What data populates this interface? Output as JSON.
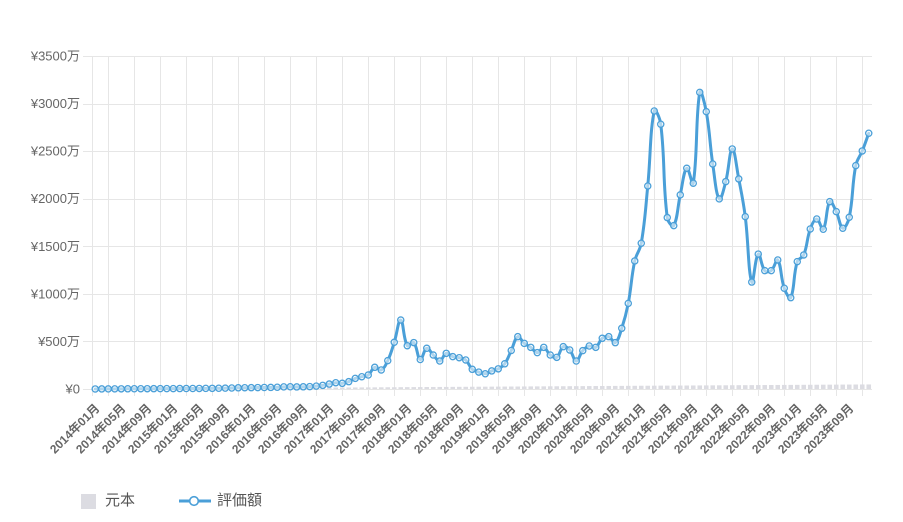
{
  "chart_data": {
    "type": "line",
    "title": "",
    "xlabel": "",
    "ylabel": "",
    "y_unit": "万円",
    "ylim": [
      0,
      3500
    ],
    "y_ticks": [
      0,
      500,
      1000,
      1500,
      2000,
      2500,
      3000,
      3500
    ],
    "y_tick_labels": [
      "¥0",
      "¥500万",
      "¥1000万",
      "¥1500万",
      "¥2000万",
      "¥2500万",
      "¥3000万",
      "¥3500万"
    ],
    "grid": true,
    "legend_position": "bottom-left",
    "x_tick_labels": [
      "2014年01月",
      "2014年05月",
      "2014年09月",
      "2015年01月",
      "2015年05月",
      "2015年09月",
      "2016年01月",
      "2016年05月",
      "2016年09月",
      "2017年01月",
      "2017年05月",
      "2017年09月",
      "2018年01月",
      "2018年05月",
      "2018年09月",
      "2019年01月",
      "2019年05月",
      "2019年09月",
      "2020年01月",
      "2020年05月",
      "2020年09月",
      "2021年01月",
      "2021年05月",
      "2021年09月",
      "2022年01月",
      "2022年05月",
      "2022年09月",
      "2023年01月",
      "2023年05月",
      "2023年09月"
    ],
    "categories": [
      "2014年01月",
      "2014年02月",
      "2014年03月",
      "2014年04月",
      "2014年05月",
      "2014年06月",
      "2014年07月",
      "2014年08月",
      "2014年09月",
      "2014年10月",
      "2014年11月",
      "2014年12月",
      "2015年01月",
      "2015年02月",
      "2015年03月",
      "2015年04月",
      "2015年05月",
      "2015年06月",
      "2015年07月",
      "2015年08月",
      "2015年09月",
      "2015年10月",
      "2015年11月",
      "2015年12月",
      "2016年01月",
      "2016年02月",
      "2016年03月",
      "2016年04月",
      "2016年05月",
      "2016年06月",
      "2016年07月",
      "2016年08月",
      "2016年09月",
      "2016年10月",
      "2016年11月",
      "2016年12月",
      "2017年01月",
      "2017年02月",
      "2017年03月",
      "2017年04月",
      "2017年05月",
      "2017年06月",
      "2017年07月",
      "2017年08月",
      "2017年09月",
      "2017年10月",
      "2017年11月",
      "2017年12月",
      "2018年01月",
      "2018年02月",
      "2018年03月",
      "2018年04月",
      "2018年05月",
      "2018年06月",
      "2018年07月",
      "2018年08月",
      "2018年09月",
      "2018年10月",
      "2018年11月",
      "2018年12月",
      "2019年01月",
      "2019年02月",
      "2019年03月",
      "2019年04月",
      "2019年05月",
      "2019年06月",
      "2019年07月",
      "2019年08月",
      "2019年09月",
      "2019年10月",
      "2019年11月",
      "2019年12月",
      "2020年01月",
      "2020年02月",
      "2020年03月",
      "2020年04月",
      "2020年05月",
      "2020年06月",
      "2020年07月",
      "2020年08月",
      "2020年09月",
      "2020年10月",
      "2020年11月",
      "2020年12月",
      "2021年01月",
      "2021年02月",
      "2021年03月",
      "2021年04月",
      "2021年05月",
      "2021年06月",
      "2021年07月",
      "2021年08月",
      "2021年09月",
      "2021年10月",
      "2021年11月",
      "2021年12月",
      "2022年01月",
      "2022年02月",
      "2022年03月",
      "2022年04月",
      "2022年05月",
      "2022年06月",
      "2022年07月",
      "2022年08月",
      "2022年09月",
      "2022年10月",
      "2022年11月",
      "2022年12月",
      "2023年01月",
      "2023年02月",
      "2023年03月",
      "2023年04月",
      "2023年05月",
      "2023年06月",
      "2023年07月",
      "2023年08月",
      "2023年09月",
      "2023年10月",
      "2023年11月",
      "2023年12月"
    ],
    "series": [
      {
        "name": "元本",
        "type": "bar",
        "color": "#dcdce2",
        "values": [
          0.4,
          0.8,
          1.2,
          1.6,
          2.0,
          2.4,
          2.8,
          3.2,
          3.6,
          4.0,
          4.4,
          4.8,
          5.2,
          5.6,
          6.0,
          6.4,
          6.8,
          7.2,
          7.6,
          8.0,
          8.4,
          8.8,
          9.2,
          9.6,
          10.0,
          10.4,
          10.8,
          11.2,
          11.6,
          12.0,
          12.4,
          12.8,
          13.2,
          13.6,
          14.0,
          14.4,
          14.8,
          15.2,
          15.6,
          16.0,
          16.4,
          16.8,
          17.2,
          17.6,
          18.0,
          18.4,
          18.8,
          19.2,
          19.6,
          20.0,
          20.4,
          20.8,
          21.2,
          21.6,
          22.0,
          22.4,
          22.8,
          23.2,
          23.6,
          24.0,
          24.4,
          24.8,
          25.2,
          25.6,
          26.0,
          26.4,
          26.8,
          27.2,
          27.6,
          28.0,
          28.4,
          28.8,
          29.2,
          29.6,
          30.0,
          30.4,
          30.8,
          31.2,
          31.6,
          32.0,
          32.4,
          32.8,
          33.2,
          33.6,
          34.0,
          34.4,
          34.8,
          35.2,
          35.6,
          36.0,
          36.4,
          36.8,
          37.2,
          37.6,
          38.0,
          38.4,
          38.8,
          39.2,
          39.6,
          40.0,
          40.4,
          40.8,
          41.2,
          41.6,
          42.0,
          42.4,
          42.8,
          43.2,
          43.6,
          44.0,
          44.4,
          44.8,
          45.2,
          45.6,
          46.0,
          46.4,
          46.8,
          47.2,
          47.6,
          48.0
        ]
      },
      {
        "name": "評価額",
        "type": "line",
        "color": "#4a9fd8",
        "marker": "circle",
        "smooth": true,
        "values": [
          0.4,
          0.8,
          1.1,
          1.5,
          1.8,
          2.2,
          2.5,
          2.8,
          3.1,
          3.3,
          3.6,
          3.9,
          4.1,
          4.6,
          5.0,
          5.4,
          5.9,
          6.7,
          7.2,
          7.9,
          9.0,
          10.4,
          12.6,
          13.4,
          13.8,
          15.1,
          16.0,
          16.6,
          18.3,
          22.4,
          23.4,
          21.9,
          23.0,
          25.4,
          30.2,
          38.6,
          52,
          66,
          60,
          77,
          112,
          129,
          147,
          228,
          200,
          298,
          491,
          725,
          455,
          488,
          310,
          428,
          357,
          294,
          375,
          340,
          329,
          305,
          207,
          178,
          160,
          190,
          212,
          265,
          405,
          550,
          480,
          438,
          382,
          438,
          357,
          333,
          445,
          410,
          294,
          403,
          452,
          438,
          533,
          550,
          487,
          638,
          900,
          1346,
          1532,
          2134,
          2922,
          2783,
          1802,
          1717,
          2040,
          2320,
          2163,
          3118,
          2915,
          2365,
          1998,
          2180,
          2523,
          2208,
          1812,
          1124,
          1418,
          1244,
          1244,
          1356,
          1059,
          960,
          1339,
          1409,
          1682,
          1787,
          1679,
          1969,
          1864,
          1690,
          1805,
          2348,
          2502,
          2688
        ]
      }
    ]
  }
}
